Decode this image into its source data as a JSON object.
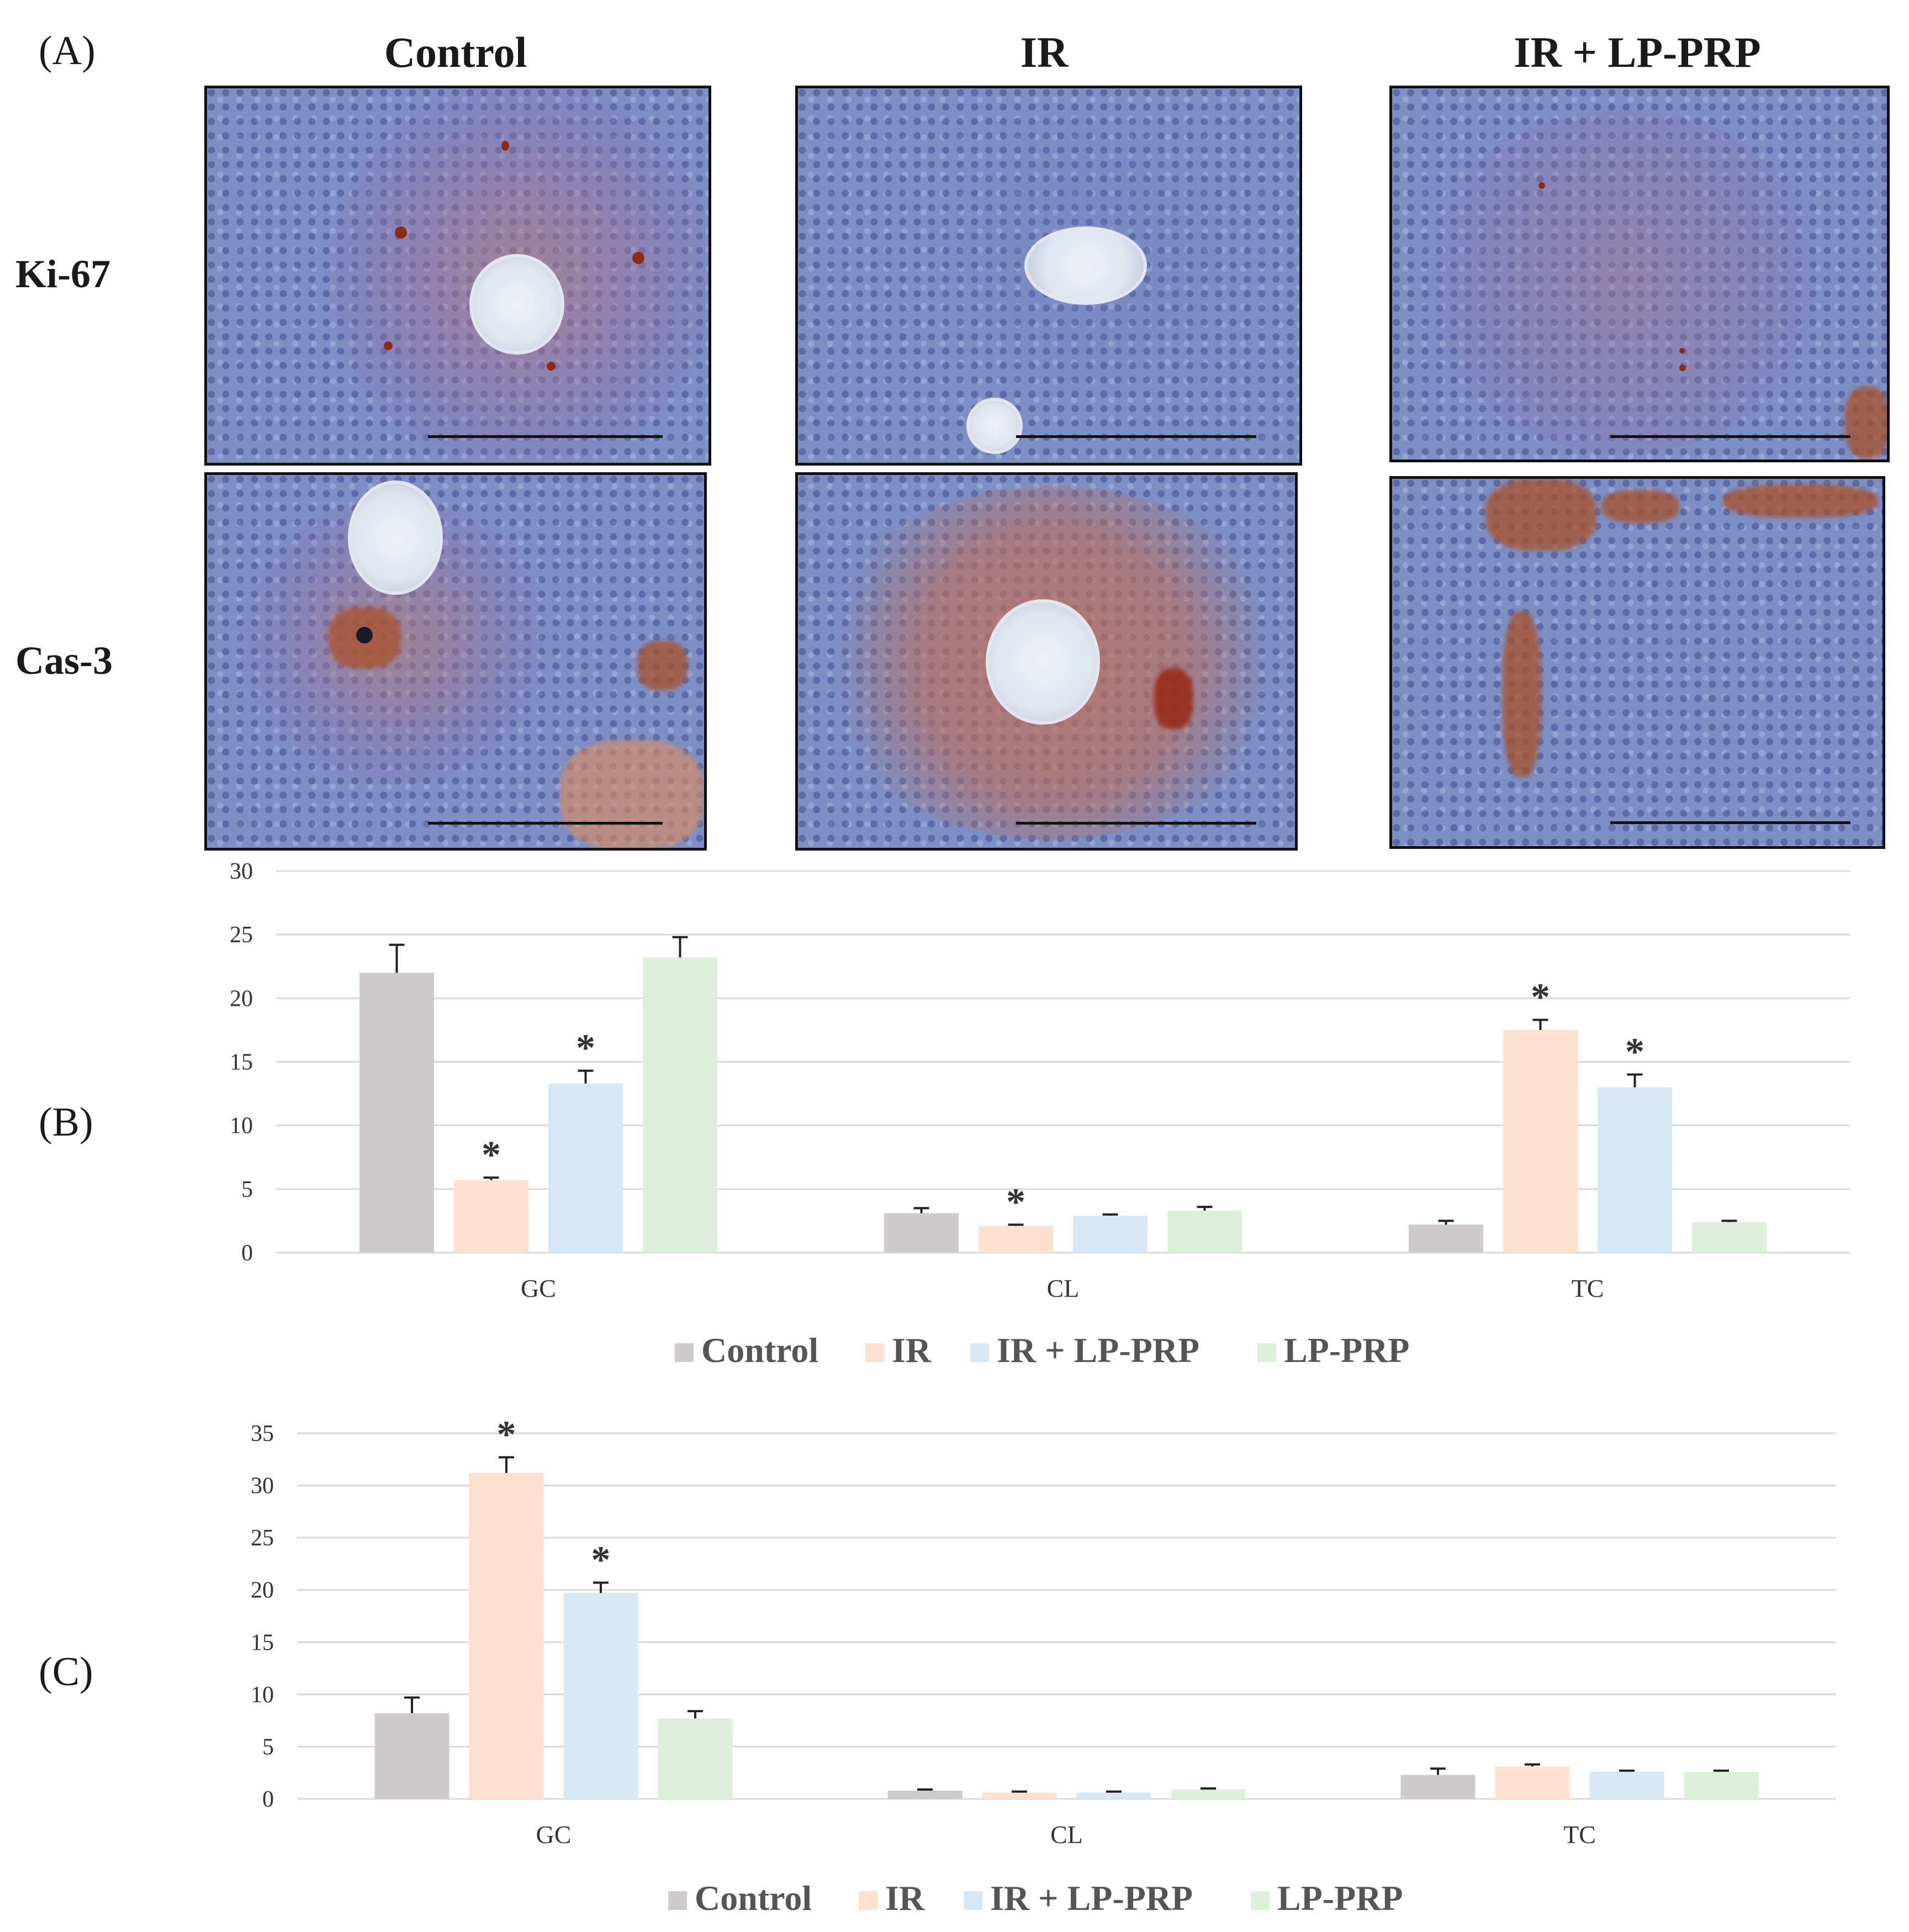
{
  "panel_labels": {
    "a": "(A)",
    "b": "(B)",
    "c": "(C)"
  },
  "columns": [
    "Control",
    "IR",
    "IR + LP-PRP"
  ],
  "rows": [
    "Ki-67",
    "Cas-3"
  ],
  "chart_data": [
    {
      "type": "bar",
      "categories": [
        "GC",
        "CL",
        "TC"
      ],
      "ylim": [
        0,
        30
      ],
      "yticks": [
        0,
        5,
        10,
        15,
        20,
        25,
        30
      ],
      "grid": true,
      "legend": "bottom",
      "colors": [
        "#cfcacb",
        "#fde0cf",
        "#d7e7f5",
        "#dcefd8"
      ],
      "series": [
        {
          "name": "Control",
          "values": [
            22.0,
            3.1,
            2.2
          ],
          "errors": [
            2.2,
            0.4,
            0.3
          ],
          "sig": [
            false,
            false,
            false
          ]
        },
        {
          "name": "IR",
          "values": [
            5.7,
            2.1,
            17.5
          ],
          "errors": [
            0.2,
            0.1,
            0.8
          ],
          "sig": [
            true,
            true,
            true
          ]
        },
        {
          "name": "IR + LP-PRP",
          "values": [
            13.3,
            2.9,
            13.0
          ],
          "errors": [
            1.0,
            0.1,
            1.0
          ],
          "sig": [
            true,
            false,
            true
          ]
        },
        {
          "name": "LP-PRP",
          "values": [
            23.2,
            3.3,
            2.4
          ],
          "errors": [
            1.6,
            0.3,
            0.1
          ],
          "sig": [
            false,
            false,
            false
          ]
        }
      ],
      "sig_marker": "*"
    },
    {
      "type": "bar",
      "categories": [
        "GC",
        "CL",
        "TC"
      ],
      "ylim": [
        0,
        35
      ],
      "yticks": [
        0,
        5,
        10,
        15,
        20,
        25,
        30,
        35
      ],
      "grid": true,
      "legend": "bottom",
      "colors": [
        "#cfcacb",
        "#fde0cf",
        "#d7e7f5",
        "#dcefd8"
      ],
      "series": [
        {
          "name": "Control",
          "values": [
            8.2,
            0.8,
            2.3
          ],
          "errors": [
            1.5,
            0.1,
            0.6
          ],
          "sig": [
            false,
            false,
            false
          ]
        },
        {
          "name": "IR",
          "values": [
            31.2,
            0.6,
            3.1
          ],
          "errors": [
            1.5,
            0.1,
            0.2
          ],
          "sig": [
            true,
            false,
            false
          ]
        },
        {
          "name": "IR + LP-PRP",
          "values": [
            19.7,
            0.6,
            2.6
          ],
          "errors": [
            1.0,
            0.1,
            0.1
          ],
          "sig": [
            true,
            false,
            false
          ]
        },
        {
          "name": "LP-PRP",
          "values": [
            7.7,
            0.9,
            2.6
          ],
          "errors": [
            0.7,
            0.1,
            0.1
          ],
          "sig": [
            false,
            false,
            false
          ]
        }
      ],
      "sig_marker": "*"
    }
  ]
}
